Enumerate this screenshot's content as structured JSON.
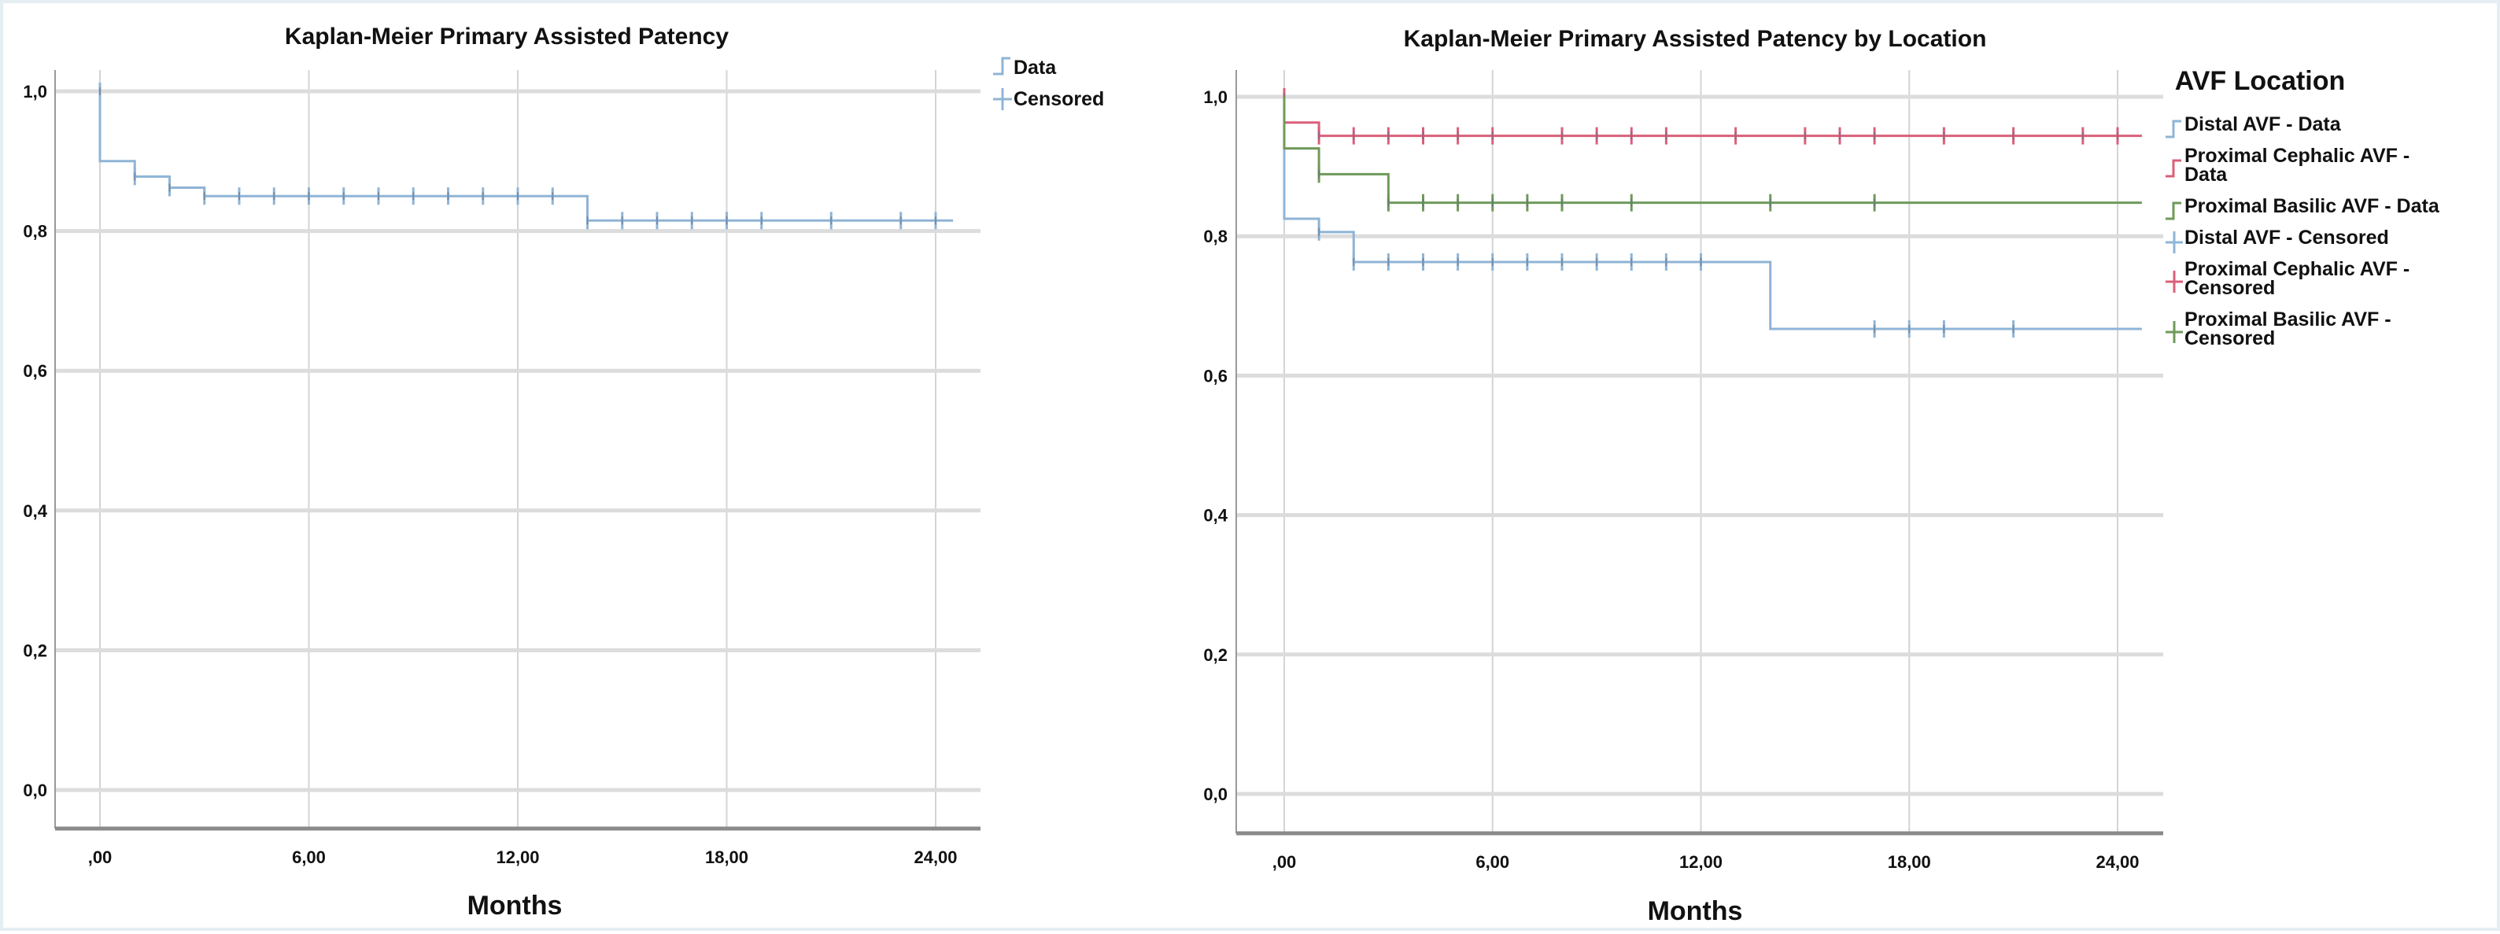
{
  "chart_data": [
    {
      "type": "line",
      "subtype": "kaplan-meier",
      "title": "Kaplan-Meier Primary Assisted Patency",
      "xlabel": "Months",
      "ylabel": "",
      "xlim": [
        0,
        24
      ],
      "ylim": [
        0,
        1
      ],
      "xticks": [
        0,
        6,
        12,
        18,
        24
      ],
      "xtick_labels": [
        ",00",
        "6,00",
        "12,00",
        "18,00",
        "24,00"
      ],
      "yticks": [
        0,
        0.2,
        0.4,
        0.6,
        0.8,
        1.0
      ],
      "ytick_labels": [
        "0,0",
        "0,2",
        "0,4",
        "0,6",
        "0,8",
        "1,0"
      ],
      "grid": true,
      "legend_position": "top-right",
      "legend_title": "",
      "legend": [
        "Data",
        "Censored"
      ],
      "series": [
        {
          "name": "Data",
          "color": "#8fb4d6",
          "steps": [
            [
              0,
              1.0
            ],
            [
              0,
              0.9
            ],
            [
              1,
              0.878
            ],
            [
              2,
              0.862
            ],
            [
              3,
              0.85
            ],
            [
              14,
              0.815
            ],
            [
              24.5,
              0.815
            ]
          ],
          "censored": [
            [
              0,
              1.0
            ],
            [
              1,
              0.878
            ],
            [
              2,
              0.862
            ],
            [
              3,
              0.85
            ],
            [
              4,
              0.85
            ],
            [
              5,
              0.85
            ],
            [
              6,
              0.85
            ],
            [
              7,
              0.85
            ],
            [
              8,
              0.85
            ],
            [
              9,
              0.85
            ],
            [
              10,
              0.85
            ],
            [
              11,
              0.85
            ],
            [
              12,
              0.85
            ],
            [
              13,
              0.85
            ],
            [
              14,
              0.815
            ],
            [
              15,
              0.815
            ],
            [
              16,
              0.815
            ],
            [
              17,
              0.815
            ],
            [
              18,
              0.815
            ],
            [
              19,
              0.815
            ],
            [
              21,
              0.815
            ],
            [
              23,
              0.815
            ],
            [
              24,
              0.815
            ]
          ]
        }
      ]
    },
    {
      "type": "line",
      "subtype": "kaplan-meier",
      "title": "Kaplan-Meier Primary Assisted Patency by Location",
      "xlabel": "Months",
      "ylabel": "",
      "xlim": [
        0,
        24
      ],
      "ylim": [
        0,
        1
      ],
      "xticks": [
        0,
        6,
        12,
        18,
        24
      ],
      "xtick_labels": [
        ",00",
        "6,00",
        "12,00",
        "18,00",
        "24,00"
      ],
      "yticks": [
        0,
        0.2,
        0.4,
        0.6,
        0.8,
        1.0
      ],
      "ytick_labels": [
        "0,0",
        "0,2",
        "0,4",
        "0,6",
        "0,8",
        "1,0"
      ],
      "grid": true,
      "legend_position": "right",
      "legend_title": "AVF Location",
      "legend": [
        "Distal AVF - Data",
        "Proximal Cephalic AVF - Data",
        "Proximal Basilic AVF - Data",
        "Distal AVF - Censored",
        "Proximal Cephalic AVF - Censored",
        "Proximal Basilic AVF - Censored"
      ],
      "series": [
        {
          "name": "Distal AVF",
          "color": "#8fb4d6",
          "steps": [
            [
              0,
              1.0
            ],
            [
              0,
              0.825
            ],
            [
              1,
              0.806
            ],
            [
              2,
              0.763
            ],
            [
              14,
              0.667
            ],
            [
              24.7,
              0.667
            ]
          ],
          "censored": [
            [
              1,
              0.806
            ],
            [
              2,
              0.763
            ],
            [
              3,
              0.763
            ],
            [
              4,
              0.763
            ],
            [
              5,
              0.763
            ],
            [
              6,
              0.763
            ],
            [
              7,
              0.763
            ],
            [
              8,
              0.763
            ],
            [
              9,
              0.763
            ],
            [
              10,
              0.763
            ],
            [
              11,
              0.763
            ],
            [
              12,
              0.763
            ],
            [
              17,
              0.667
            ],
            [
              18,
              0.667
            ],
            [
              19,
              0.667
            ],
            [
              21,
              0.667
            ]
          ]
        },
        {
          "name": "Proximal Cephalic AVF",
          "color": "#d9607a",
          "steps": [
            [
              0,
              1.0
            ],
            [
              0,
              0.963
            ],
            [
              1,
              0.944
            ],
            [
              24.7,
              0.944
            ]
          ],
          "censored": [
            [
              0,
              1.0
            ],
            [
              1,
              0.944
            ],
            [
              2,
              0.944
            ],
            [
              3,
              0.944
            ],
            [
              4,
              0.944
            ],
            [
              5,
              0.944
            ],
            [
              6,
              0.944
            ],
            [
              8,
              0.944
            ],
            [
              9,
              0.944
            ],
            [
              10,
              0.944
            ],
            [
              11,
              0.944
            ],
            [
              13,
              0.944
            ],
            [
              15,
              0.944
            ],
            [
              16,
              0.944
            ],
            [
              17,
              0.944
            ],
            [
              19,
              0.944
            ],
            [
              21,
              0.944
            ],
            [
              23,
              0.944
            ],
            [
              24,
              0.944
            ]
          ]
        },
        {
          "name": "Proximal Basilic AVF",
          "color": "#6f9a5a",
          "steps": [
            [
              0,
              1.0
            ],
            [
              0,
              0.926
            ],
            [
              1,
              0.889
            ],
            [
              3,
              0.848
            ],
            [
              24.7,
              0.848
            ]
          ],
          "censored": [
            [
              1,
              0.889
            ],
            [
              3,
              0.848
            ],
            [
              4,
              0.848
            ],
            [
              5,
              0.848
            ],
            [
              6,
              0.848
            ],
            [
              7,
              0.848
            ],
            [
              8,
              0.848
            ],
            [
              10,
              0.848
            ],
            [
              14,
              0.848
            ],
            [
              17,
              0.848
            ]
          ]
        }
      ]
    }
  ]
}
